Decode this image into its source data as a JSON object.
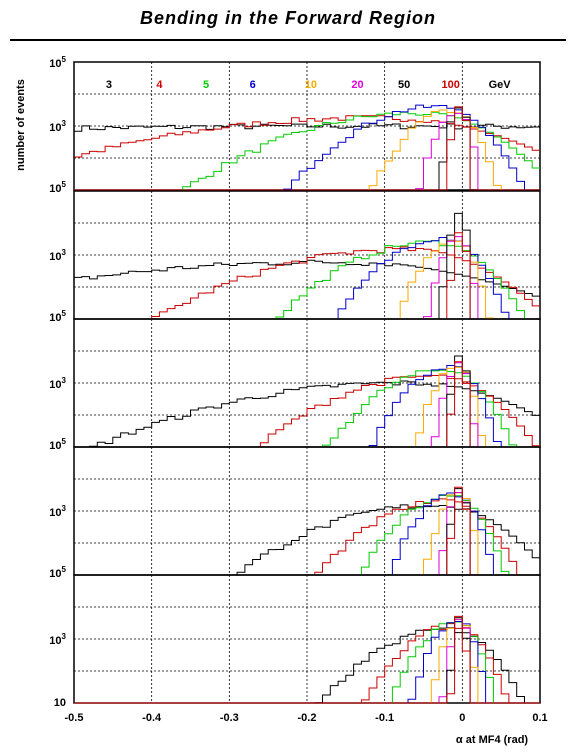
{
  "title": "Bending in the Forward Region",
  "chart_data": {
    "type": "histogram",
    "xlabel": "α at MF4 (rad)",
    "ylabel": "number of events",
    "xlim": [
      -0.5,
      0.1
    ],
    "ylim_log": [
      10,
      100000
    ],
    "x_ticks": [
      "-0.5",
      "-0.4",
      "-0.3",
      "-0.2",
      "-0.1",
      "0",
      "0.1"
    ],
    "y_scale": "log",
    "bin_width": 0.01,
    "unit": "GeV",
    "colors": {
      "3": "#000000",
      "4": "#cc0000",
      "5": "#00cc00",
      "6": "#0000cc",
      "10": "#ffaa00",
      "20": "#dd00dd",
      "50": "#000000",
      "100": "#cc0000"
    },
    "panels": [
      {
        "series": [
          {
            "name": "3",
            "peak_x": -0.1,
            "width": 0.7,
            "peak": 1000,
            "floor_high": true
          },
          {
            "name": "4",
            "peak_x": -0.12,
            "width": 0.16,
            "peak": 1800
          },
          {
            "name": "5",
            "peak_x": -0.06,
            "width": 0.09,
            "peak": 2500
          },
          {
            "name": "6",
            "peak_x": -0.035,
            "width": 0.055,
            "peak": 4000
          },
          {
            "name": "10",
            "peak_x": -0.015,
            "width": 0.03,
            "peak": 3000
          },
          {
            "name": "20",
            "peak_x": -0.006,
            "width": 0.015,
            "peak": 2800
          },
          {
            "name": "50",
            "peak_x": -0.002,
            "width": 0.008,
            "peak": 4500
          },
          {
            "name": "100",
            "peak_x": -0.001,
            "width": 0.006,
            "peak": 5000
          }
        ]
      },
      {
        "series": [
          {
            "name": "3",
            "peak_x": -0.18,
            "width": 0.2,
            "peak": 600
          },
          {
            "name": "4",
            "peak_x": -0.08,
            "width": 0.1,
            "peak": 1500
          },
          {
            "name": "5",
            "peak_x": -0.04,
            "width": 0.06,
            "peak": 2500
          },
          {
            "name": "6",
            "peak_x": -0.025,
            "width": 0.04,
            "peak": 3500
          },
          {
            "name": "10",
            "peak_x": -0.01,
            "width": 0.022,
            "peak": 3000
          },
          {
            "name": "20",
            "peak_x": -0.004,
            "width": 0.012,
            "peak": 3500
          },
          {
            "name": "50",
            "peak_x": -0.002,
            "width": 0.007,
            "peak": 20000
          },
          {
            "name": "100",
            "peak_x": -0.001,
            "width": 0.005,
            "peak": 8000
          }
        ]
      },
      {
        "series": [
          {
            "name": "3",
            "peak_x": -0.08,
            "width": 0.13,
            "peak": 1000
          },
          {
            "name": "4",
            "peak_x": -0.04,
            "width": 0.07,
            "peak": 1600
          },
          {
            "name": "5",
            "peak_x": -0.025,
            "width": 0.045,
            "peak": 2500
          },
          {
            "name": "6",
            "peak_x": -0.015,
            "width": 0.03,
            "peak": 3200
          },
          {
            "name": "10",
            "peak_x": -0.006,
            "width": 0.016,
            "peak": 3500
          },
          {
            "name": "20",
            "peak_x": -0.003,
            "width": 0.01,
            "peak": 4000
          },
          {
            "name": "50",
            "peak_x": -0.001,
            "width": 0.006,
            "peak": 8000
          },
          {
            "name": "100",
            "peak_x": -0.001,
            "width": 0.005,
            "peak": 6000
          }
        ]
      },
      {
        "series": [
          {
            "name": "3",
            "peak_x": -0.04,
            "width": 0.08,
            "peak": 1500
          },
          {
            "name": "4",
            "peak_x": -0.025,
            "width": 0.05,
            "peak": 2000
          },
          {
            "name": "5",
            "peak_x": -0.015,
            "width": 0.035,
            "peak": 2800
          },
          {
            "name": "6",
            "peak_x": -0.01,
            "width": 0.025,
            "peak": 3300
          },
          {
            "name": "10",
            "peak_x": -0.004,
            "width": 0.013,
            "peak": 4000
          },
          {
            "name": "20",
            "peak_x": -0.002,
            "width": 0.008,
            "peak": 4500
          },
          {
            "name": "50",
            "peak_x": -0.001,
            "width": 0.006,
            "peak": 6000
          },
          {
            "name": "100",
            "peak_x": -0.001,
            "width": 0.005,
            "peak": 7000
          }
        ]
      },
      {
        "series": [
          {
            "name": "3",
            "peak_x": -0.02,
            "width": 0.05,
            "peak": 2000
          },
          {
            "name": "4",
            "peak_x": -0.012,
            "width": 0.035,
            "peak": 2600
          },
          {
            "name": "5",
            "peak_x": -0.008,
            "width": 0.025,
            "peak": 3200
          },
          {
            "name": "6",
            "peak_x": -0.005,
            "width": 0.018,
            "peak": 3800
          },
          {
            "name": "10",
            "peak_x": -0.003,
            "width": 0.011,
            "peak": 4500
          },
          {
            "name": "20",
            "peak_x": -0.001,
            "width": 0.007,
            "peak": 5000
          },
          {
            "name": "50",
            "peak_x": -0.001,
            "width": 0.005,
            "peak": 6500
          },
          {
            "name": "100",
            "peak_x": -0.001,
            "width": 0.004,
            "peak": 8000
          }
        ]
      }
    ]
  }
}
